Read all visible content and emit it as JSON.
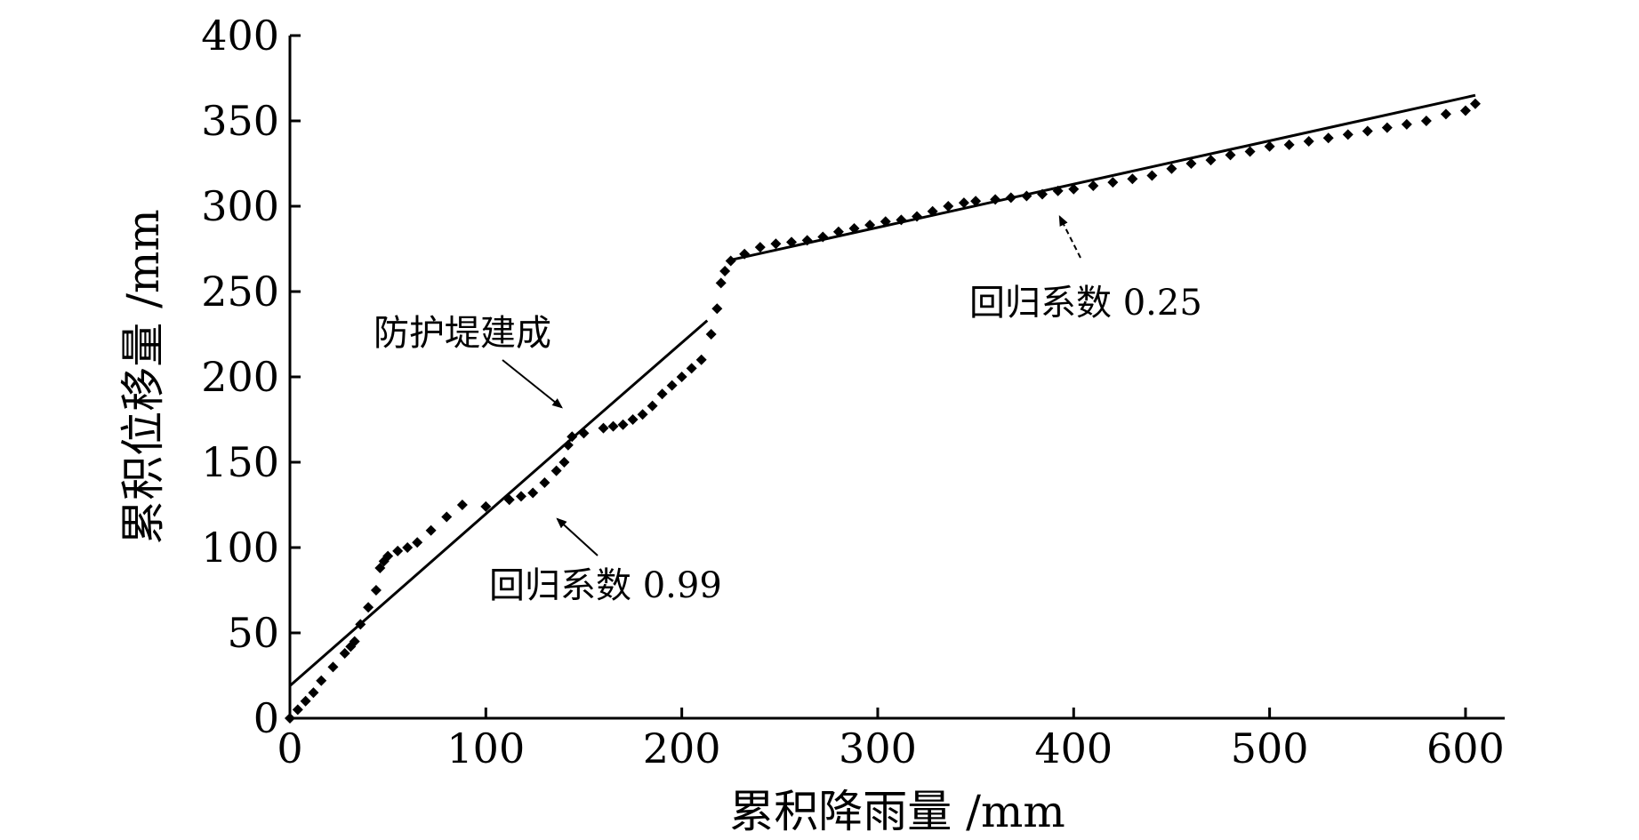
{
  "chart_data": {
    "type": "scatter",
    "xlabel": "累积降雨量 /mm",
    "ylabel": "累积位移量 /mm",
    "xlim": [
      0,
      620
    ],
    "ylim": [
      0,
      400
    ],
    "x_ticks": [
      0,
      100,
      200,
      300,
      400,
      500,
      600
    ],
    "y_ticks": [
      0,
      50,
      100,
      150,
      200,
      250,
      300,
      350,
      400
    ],
    "grid": false,
    "series": [
      {
        "style": "markers",
        "x": [
          0,
          4,
          8,
          12,
          16,
          22,
          28,
          31,
          33,
          36,
          40,
          44,
          46,
          48,
          50,
          55,
          60,
          65,
          72,
          80,
          88,
          100,
          112,
          118,
          124,
          130,
          136,
          140,
          142,
          144,
          150,
          160,
          165,
          170,
          175,
          180,
          185,
          190,
          195,
          200,
          205,
          210,
          215,
          218,
          220,
          222,
          225,
          232,
          240,
          248,
          256,
          264,
          272,
          280,
          288,
          296,
          304,
          312,
          320,
          328,
          336,
          344,
          350,
          360,
          368,
          376,
          384,
          392,
          400,
          410,
          420,
          430,
          440,
          450,
          460,
          470,
          480,
          490,
          500,
          510,
          520,
          530,
          540,
          550,
          560,
          570,
          580,
          590,
          600,
          605
        ],
        "y": [
          0,
          5,
          10,
          15,
          22,
          30,
          38,
          42,
          45,
          55,
          65,
          75,
          88,
          92,
          95,
          98,
          100,
          103,
          110,
          118,
          125,
          124,
          128,
          130,
          132,
          138,
          145,
          150,
          160,
          165,
          167,
          170,
          171,
          172,
          175,
          178,
          183,
          190,
          195,
          200,
          205,
          210,
          225,
          240,
          255,
          262,
          268,
          272,
          276,
          278,
          279,
          280,
          282,
          285,
          287,
          289,
          291,
          292,
          294,
          297,
          300,
          302,
          303,
          304,
          305,
          306,
          307,
          309,
          310,
          312,
          314,
          316,
          318,
          322,
          325,
          327,
          330,
          332,
          335,
          336,
          338,
          340,
          342,
          344,
          346,
          348,
          350,
          354,
          356,
          360
        ]
      },
      {
        "style": "line",
        "x": [
          0,
          140,
          213
        ],
        "y": [
          19,
          160,
          233
        ]
      },
      {
        "style": "line",
        "x": [
          223,
          605
        ],
        "y": [
          268,
          365
        ]
      }
    ],
    "annotations": [
      {
        "text": "防护堤建成",
        "point": [
          135,
          178
        ]
      },
      {
        "text": "回归系数 0.99",
        "point": [
          132,
          123
        ]
      },
      {
        "text": "回归系数 0.25",
        "point": [
          392,
          298
        ]
      }
    ]
  }
}
